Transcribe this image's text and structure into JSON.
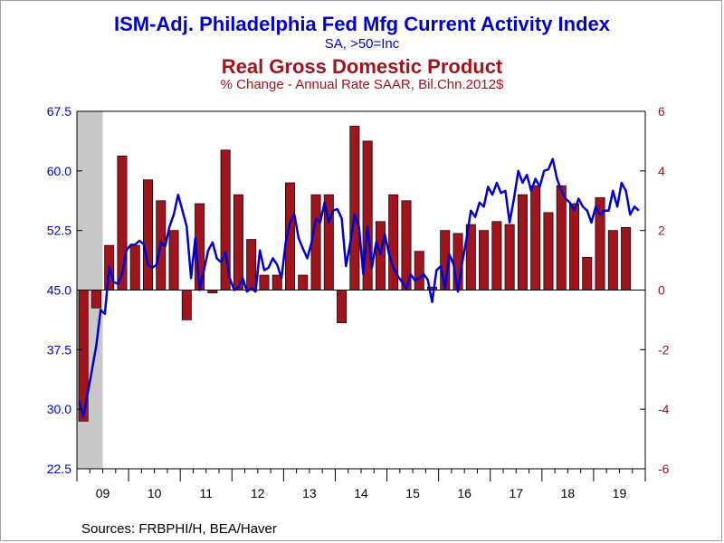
{
  "titles": {
    "title": "ISM-Adj. Philadelphia Fed Mfg Current Activity Index",
    "subtitle": "SA, >50=Inc",
    "title2": "Real Gross Domestic Product",
    "subtitle2": "% Change - Annual Rate     SAAR, Bil.Chn.2012$"
  },
  "sources": "Sources:  FRBPHI/H, BEA/Haver",
  "colors": {
    "line": "#0000cc",
    "bar": "#a0141e",
    "recession": "#c8c8c8"
  },
  "chart_data": {
    "type": "bar+line",
    "x_start": "2009-01",
    "x_end": "2019-12",
    "xtick_labels": [
      "09",
      "10",
      "11",
      "12",
      "13",
      "14",
      "15",
      "16",
      "17",
      "18",
      "19"
    ],
    "left_axis": {
      "ylim": [
        22.5,
        67.5
      ],
      "ticks": [
        22.5,
        30.0,
        37.5,
        45.0,
        52.5,
        60.0,
        67.5
      ],
      "tick_labels": [
        "22.5",
        "30.0",
        "37.5",
        "45.0",
        "52.5",
        "60.0",
        "67.5"
      ]
    },
    "right_axis": {
      "ylim": [
        -6,
        6
      ],
      "ticks": [
        -6,
        -4,
        -2,
        0,
        2,
        4,
        6
      ],
      "tick_labels": [
        "-6",
        "-4",
        "-2",
        "0",
        "2",
        "4",
        "6"
      ]
    },
    "recession": {
      "start": "2009-01",
      "end": "2009-06"
    },
    "bars": {
      "name": "Real Gross Domestic Product",
      "x": [
        "2009Q1",
        "2009Q2",
        "2009Q3",
        "2009Q4",
        "2010Q1",
        "2010Q2",
        "2010Q3",
        "2010Q4",
        "2011Q1",
        "2011Q2",
        "2011Q3",
        "2011Q4",
        "2012Q1",
        "2012Q2",
        "2012Q3",
        "2012Q4",
        "2013Q1",
        "2013Q2",
        "2013Q3",
        "2013Q4",
        "2014Q1",
        "2014Q2",
        "2014Q3",
        "2014Q4",
        "2015Q1",
        "2015Q2",
        "2015Q3",
        "2015Q4",
        "2016Q1",
        "2016Q2",
        "2016Q3",
        "2016Q4",
        "2017Q1",
        "2017Q2",
        "2017Q3",
        "2017Q4",
        "2018Q1",
        "2018Q2",
        "2018Q3",
        "2018Q4",
        "2019Q1",
        "2019Q2",
        "2019Q3"
      ],
      "values": [
        -4.4,
        -0.6,
        1.5,
        4.5,
        1.5,
        3.7,
        3.0,
        2.0,
        -1.0,
        2.9,
        -0.1,
        4.7,
        3.2,
        1.7,
        0.5,
        0.5,
        3.6,
        0.5,
        3.2,
        3.2,
        -1.1,
        5.5,
        5.0,
        2.3,
        3.2,
        3.0,
        1.3,
        0.1,
        2.0,
        1.9,
        2.2,
        2.0,
        2.3,
        2.2,
        3.2,
        3.5,
        2.6,
        3.5,
        2.9,
        1.1,
        3.1,
        2.0,
        2.1
      ]
    },
    "line": {
      "name": "ISM-Adj. Philadelphia Fed Mfg Current Activity Index",
      "x_start": "2009-01",
      "values": [
        31.0,
        29.0,
        32.0,
        35.0,
        38.0,
        42.5,
        42.0,
        48.0,
        46.0,
        45.8,
        47.0,
        50.0,
        50.7,
        50.7,
        51.2,
        50.8,
        48.2,
        47.8,
        48.2,
        51.0,
        50.5,
        53.0,
        54.5,
        57.0,
        55.0,
        53.0,
        46.5,
        51.5,
        45.0,
        47.5,
        50.0,
        51.0,
        49.0,
        48.5,
        49.8,
        46.5,
        45.0,
        45.3,
        46.5,
        44.8,
        45.2,
        44.8,
        50.0,
        47.5,
        47.8,
        49.0,
        48.2,
        46.5,
        51.0,
        53.5,
        54.5,
        51.5,
        50.2,
        49.0,
        51.0,
        54.0,
        53.5,
        56.0,
        53.5,
        55.0,
        55.2,
        54.0,
        48.0,
        51.0,
        54.5,
        53.0,
        47.0,
        53.0,
        47.8,
        51.0,
        49.5,
        52.0,
        49.5,
        47.8,
        46.8,
        46.0,
        45.2,
        47.0,
        46.2,
        46.5,
        47.0,
        46.3,
        43.5,
        47.5,
        48.0,
        45.2,
        49.5,
        48.2,
        44.8,
        48.5,
        51.5,
        55.0,
        54.2,
        56.0,
        55.5,
        58.0,
        57.0,
        58.5,
        57.2,
        57.5,
        53.5,
        56.5,
        60.0,
        58.5,
        59.5,
        57.5,
        59.0,
        58.0,
        60.0,
        60.2,
        61.5,
        59.0,
        57.5,
        56.5,
        56.0,
        55.0,
        56.5,
        55.5,
        55.0,
        53.5,
        55.5,
        54.5,
        55.0,
        55.0,
        57.5,
        55.5,
        58.5,
        57.5,
        54.5,
        55.5,
        55.0
      ]
    }
  }
}
